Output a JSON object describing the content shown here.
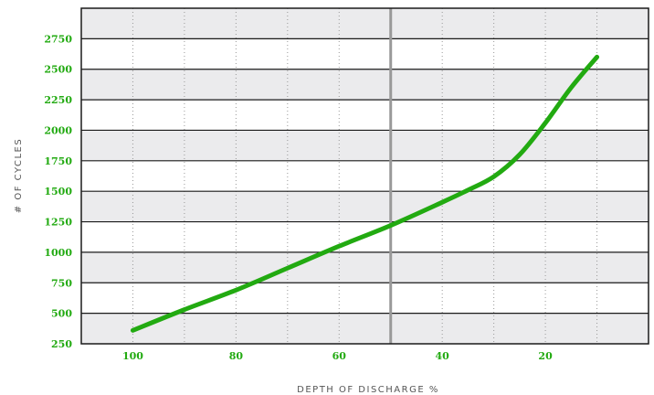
{
  "chart_data": {
    "type": "line",
    "title": "",
    "xlabel": "DEPTH OF DISCHARGE %",
    "ylabel": "# OF CYCLES",
    "x_reversed": true,
    "xlim": [
      0,
      110
    ],
    "ylim": [
      250,
      3000
    ],
    "xticks": [
      100,
      80,
      60,
      40,
      20
    ],
    "xtick_labels": [
      "100",
      "80",
      "60",
      "40",
      "20"
    ],
    "yticks": [
      250,
      500,
      750,
      1000,
      1250,
      1500,
      1750,
      2000,
      2250,
      2500,
      2750
    ],
    "ytick_labels": [
      "250",
      "500",
      "750",
      "1000",
      "1250",
      "1500",
      "1750",
      "2000",
      "2250",
      "2500",
      "2750"
    ],
    "reference_line_x": 50,
    "grid": true,
    "series": [
      {
        "x": [
          100,
          90,
          80,
          70,
          60,
          50,
          40,
          35,
          30,
          25,
          20,
          15,
          10
        ],
        "y": [
          360,
          530,
          690,
          870,
          1050,
          1220,
          1410,
          1510,
          1620,
          1800,
          2060,
          2350,
          2600
        ]
      }
    ],
    "colors": {
      "line": "#22aa11",
      "tick_text": "#22aa11",
      "band_light": "#ebebed",
      "band_white": "#ffffff",
      "hgrid": "#1a1a1a",
      "vgrid": "#999999",
      "reference_line": "#999999",
      "axis_title": "#555555"
    }
  }
}
